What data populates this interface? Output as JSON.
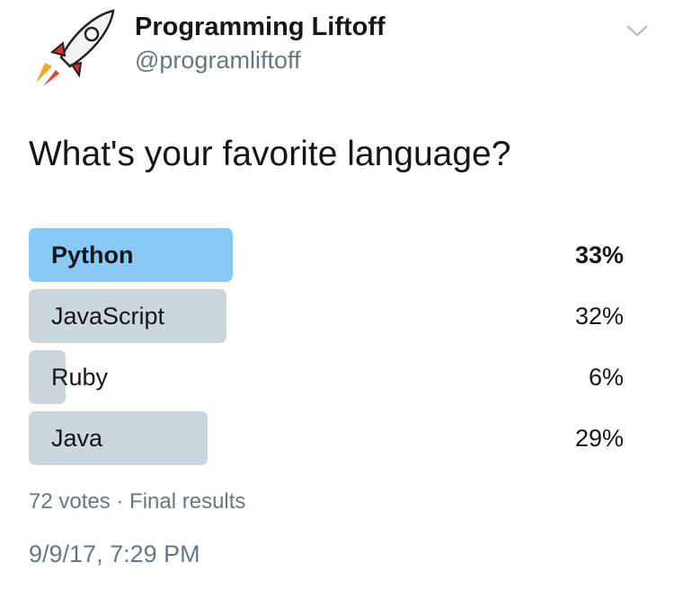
{
  "header": {
    "name": "Programming Liftoff",
    "handle": "@programliftoff"
  },
  "question": "What's your favorite language?",
  "poll": {
    "options": [
      {
        "label": "Python",
        "value": 33,
        "value_label": "33%"
      },
      {
        "label": "JavaScript",
        "value": 32,
        "value_label": "32%"
      },
      {
        "label": "Ruby",
        "value": 6,
        "value_label": "6%"
      },
      {
        "label": "Java",
        "value": 29,
        "value_label": "29%"
      }
    ]
  },
  "footer": {
    "summary": "72 votes · Final results",
    "timestamp": "9/9/17, 7:29 PM"
  }
}
